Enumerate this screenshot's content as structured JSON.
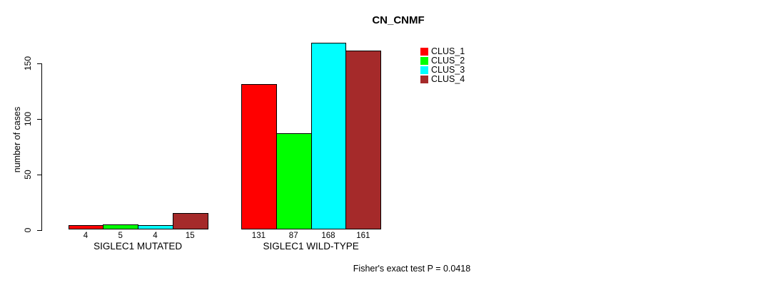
{
  "chart_data": {
    "type": "bar",
    "title": "CN_CNMF",
    "xlabel": "",
    "ylabel": "number of cases",
    "ylim": [
      0,
      170
    ],
    "yticks": [
      0,
      50,
      100,
      150
    ],
    "grid": false,
    "legend_position": "top-right",
    "categories": [
      "SIGLEC1 MUTATED",
      "SIGLEC1 WILD-TYPE"
    ],
    "series": [
      {
        "name": "CLUS_1",
        "color": "#FF0000",
        "values": [
          4,
          131
        ]
      },
      {
        "name": "CLUS_2",
        "color": "#00FF00",
        "values": [
          5,
          87
        ]
      },
      {
        "name": "CLUS_3",
        "color": "#00FFFF",
        "values": [
          4,
          168
        ]
      },
      {
        "name": "CLUS_4",
        "color": "#A52A2A",
        "values": [
          15,
          161
        ]
      }
    ],
    "bar_value_labels": [
      [
        4,
        5,
        4,
        15
      ],
      [
        131,
        87,
        168,
        161
      ]
    ],
    "annotation": "Fisher's exact test P = 0.0418"
  }
}
